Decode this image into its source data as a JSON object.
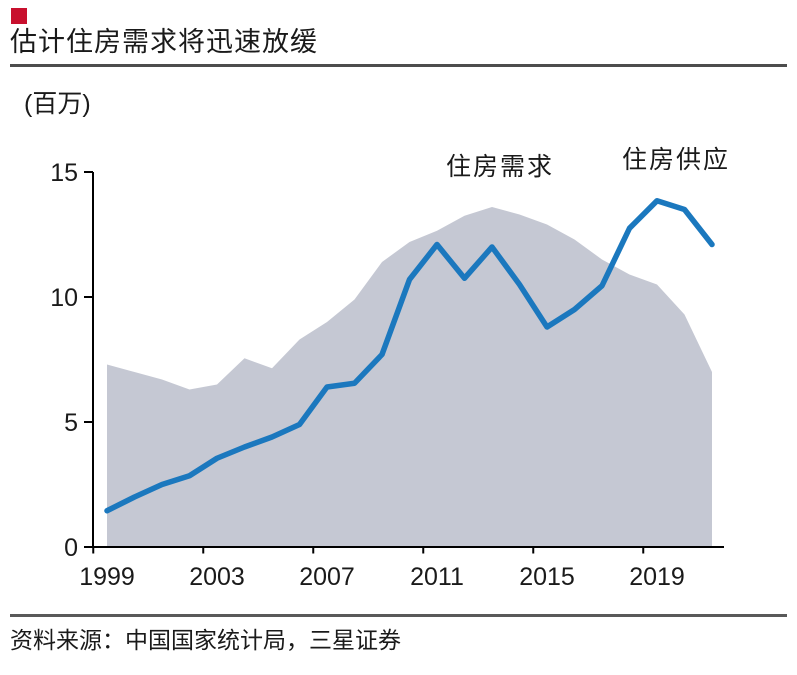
{
  "header": {
    "bullet": "red-square",
    "title": "估计住房需求将迅速放缓"
  },
  "colors": {
    "accent_red": "#C8102E",
    "line_blue": "#1B78BE",
    "area_gray": "#C5C8D3",
    "axis_black": "#000000",
    "text_black": "#1a1a1a"
  },
  "chart_data": {
    "type": "line-area-combo",
    "title": "估计住房需求将迅速放缓",
    "y_unit_label": "(百万)",
    "xlabel": "",
    "ylabel": "",
    "ylim": [
      0,
      15
    ],
    "y_ticks": [
      0,
      5,
      10,
      15
    ],
    "x": [
      1999,
      2000,
      2001,
      2002,
      2003,
      2004,
      2005,
      2006,
      2007,
      2008,
      2009,
      2010,
      2011,
      2012,
      2013,
      2014,
      2015,
      2016,
      2017,
      2018,
      2019,
      2020,
      2021
    ],
    "x_tick_labels": [
      "1999",
      "2003",
      "2007",
      "2011",
      "2015",
      "2019"
    ],
    "x_tick_years": [
      1999,
      2003,
      2007,
      2011,
      2015,
      2019
    ],
    "grid": false,
    "legend_position": "inline-annotations-above-series",
    "series": [
      {
        "name": "住房供应",
        "type": "area",
        "color": "#C5C8D3",
        "values": [
          7.3,
          7.0,
          6.7,
          6.3,
          6.5,
          7.55,
          7.15,
          8.3,
          9.0,
          9.9,
          11.4,
          12.2,
          12.65,
          13.25,
          13.6,
          13.3,
          12.9,
          12.3,
          11.5,
          10.9,
          10.5,
          9.3,
          7.0
        ]
      },
      {
        "name": "住房需求",
        "type": "line",
        "color": "#1B78BE",
        "values": [
          1.45,
          2.0,
          2.5,
          2.85,
          3.55,
          4.0,
          4.4,
          4.9,
          6.4,
          6.55,
          7.7,
          10.7,
          12.1,
          10.75,
          12.0,
          10.5,
          8.8,
          9.5,
          10.45,
          12.75,
          13.85,
          13.5,
          12.1
        ]
      }
    ]
  },
  "footer": {
    "source": "资料来源：中国国家统计局，三星证券"
  }
}
